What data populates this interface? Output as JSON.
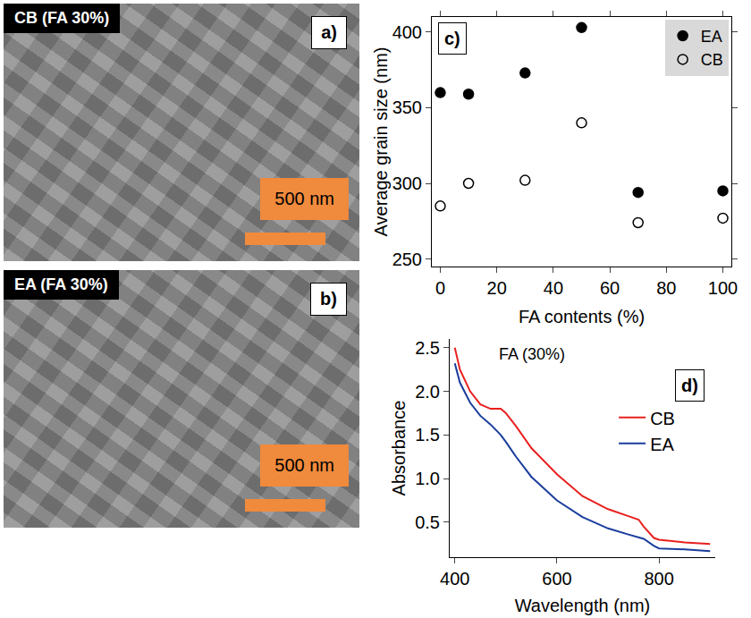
{
  "images": [
    {
      "panel": "a)",
      "label": "CB (FA 30%)",
      "scale_bar": "500 nm"
    },
    {
      "panel": "b)",
      "label": "EA (FA 30%)",
      "scale_bar": "500 nm"
    }
  ],
  "chart_data": [
    {
      "panel": "c)",
      "type": "scatter",
      "x_label": "FA contents (%)",
      "y_label": "Average grain size (nm)",
      "x": [
        0,
        10,
        30,
        50,
        70,
        100
      ],
      "series": [
        {
          "name": "EA",
          "color": "#000000",
          "marker": "filled",
          "values": [
            360,
            359,
            373,
            403,
            294,
            295
          ]
        },
        {
          "name": "CB",
          "color": "#000000",
          "marker": "open",
          "values": [
            285,
            300,
            302,
            340,
            274,
            277
          ]
        }
      ],
      "xlim": [
        -3,
        103
      ],
      "xticks": [
        0,
        20,
        40,
        60,
        80,
        100
      ],
      "ylim": [
        245,
        410
      ],
      "yticks": [
        250,
        300,
        350,
        400
      ],
      "legend": "top right"
    },
    {
      "panel": "d)",
      "type": "line",
      "annotations": [
        "FA (30%)"
      ],
      "x_label": "Wavelength (nm)",
      "y_label": "Absorbance",
      "x": [
        400,
        410,
        430,
        450,
        470,
        490,
        500,
        520,
        550,
        600,
        650,
        700,
        740,
        760,
        770,
        790,
        800,
        850,
        900
      ],
      "series": [
        {
          "name": "CB",
          "color": "#e8201e",
          "values": [
            2.5,
            2.25,
            2.0,
            1.85,
            1.8,
            1.8,
            1.75,
            1.6,
            1.35,
            1.05,
            0.8,
            0.65,
            0.57,
            0.53,
            0.45,
            0.32,
            0.3,
            0.27,
            0.25
          ]
        },
        {
          "name": "EA",
          "color": "#1a3d9c",
          "values": [
            2.32,
            2.1,
            1.87,
            1.72,
            1.62,
            1.5,
            1.42,
            1.25,
            1.02,
            0.75,
            0.56,
            0.43,
            0.36,
            0.33,
            0.31,
            0.23,
            0.2,
            0.19,
            0.17
          ]
        }
      ],
      "xlim": [
        390,
        910
      ],
      "xticks": [
        400,
        600,
        800
      ],
      "ylim": [
        0.1,
        2.6
      ],
      "yticks": [
        0.5,
        {
          "value": 1,
          "label": "1.0"
        },
        1.5,
        {
          "value": 2,
          "label": "2.0"
        },
        2.5
      ],
      "legend": "right"
    }
  ]
}
